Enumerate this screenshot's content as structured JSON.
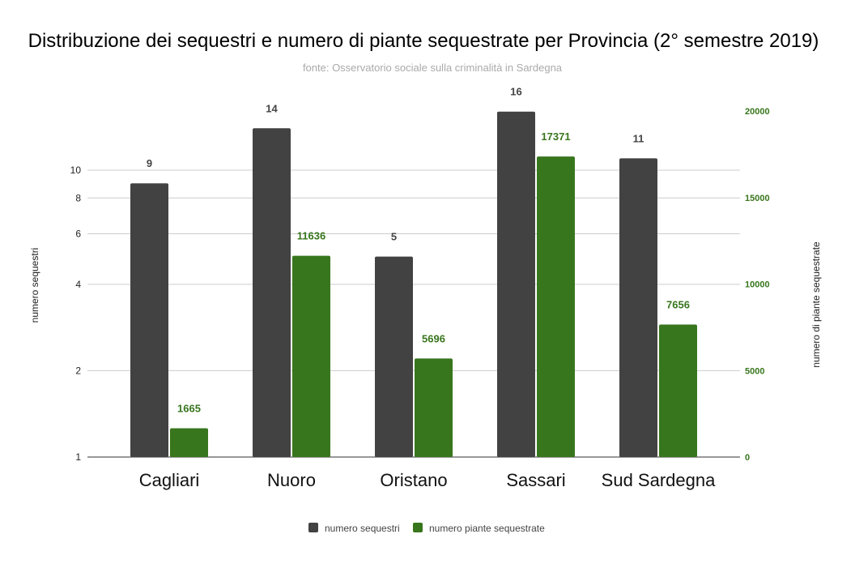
{
  "chart_data": {
    "type": "bar",
    "title": "Distribuzione dei sequestri e numero di piante sequestrate per Provincia (2° semestre 2019)",
    "subtitle": "fonte: Osservatorio sociale sulla criminalità in Sardegna",
    "categories": [
      "Cagliari",
      "Nuoro",
      "Oristano",
      "Sassari",
      "Sud Sardegna"
    ],
    "series": [
      {
        "name": "numero sequestri",
        "values": [
          9,
          14,
          5,
          16,
          11
        ],
        "color": "#424242",
        "axis": "left"
      },
      {
        "name": "numero piante sequestrate",
        "values": [
          1665,
          11636,
          5696,
          17371,
          7656
        ],
        "color": "#38761d",
        "axis": "right"
      }
    ],
    "ylabel_left": "numero sequestri",
    "ylabel_right": "numero di piante sequestrate",
    "left_axis": {
      "scale": "log",
      "ticks": [
        1,
        2,
        4,
        6,
        8,
        10
      ],
      "range": [
        1,
        16
      ]
    },
    "right_axis": {
      "scale": "linear",
      "ticks": [
        0,
        5000,
        10000,
        15000,
        20000
      ],
      "range": [
        0,
        20000
      ],
      "color": "#38761d"
    },
    "grid": true,
    "legend_position": "bottom",
    "data_labels": true
  }
}
